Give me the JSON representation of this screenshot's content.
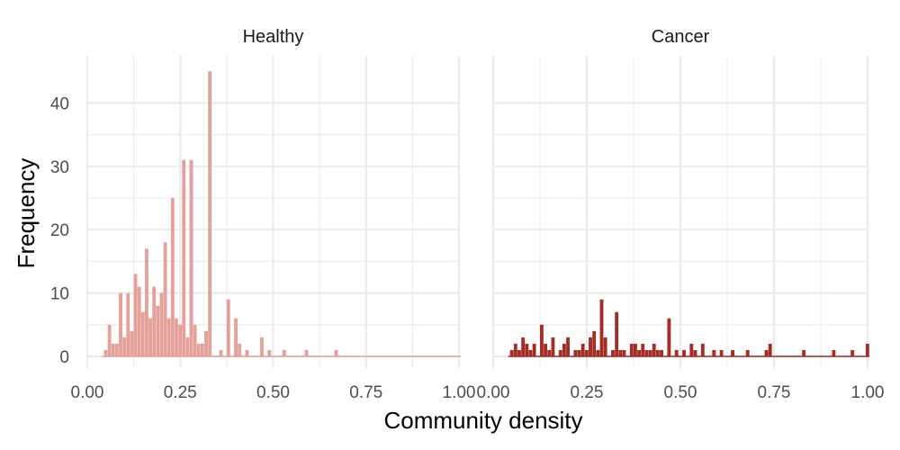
{
  "chart_data": {
    "type": "bar",
    "xlabel": "Community density",
    "ylabel": "Frequency",
    "xlim": [
      0,
      1
    ],
    "ylim": [
      0,
      45
    ],
    "x_ticks": [
      "0.00",
      "0.25",
      "0.50",
      "0.75",
      "1.00"
    ],
    "y_ticks": [
      "0",
      "10",
      "20",
      "30",
      "40"
    ],
    "grid": true,
    "bin_width": 0.01,
    "panels": [
      {
        "name": "Healthy",
        "color": "#e3a19a",
        "bins": [
          [
            0.05,
            1
          ],
          [
            0.06,
            5
          ],
          [
            0.07,
            2
          ],
          [
            0.08,
            2
          ],
          [
            0.09,
            10
          ],
          [
            0.1,
            3
          ],
          [
            0.11,
            10
          ],
          [
            0.12,
            4
          ],
          [
            0.13,
            13
          ],
          [
            0.14,
            11
          ],
          [
            0.15,
            7
          ],
          [
            0.16,
            17
          ],
          [
            0.17,
            6
          ],
          [
            0.18,
            11
          ],
          [
            0.19,
            8
          ],
          [
            0.2,
            10
          ],
          [
            0.21,
            18
          ],
          [
            0.22,
            6
          ],
          [
            0.23,
            25
          ],
          [
            0.24,
            6
          ],
          [
            0.25,
            5
          ],
          [
            0.26,
            31
          ],
          [
            0.27,
            3
          ],
          [
            0.28,
            31
          ],
          [
            0.29,
            5
          ],
          [
            0.3,
            2
          ],
          [
            0.31,
            2
          ],
          [
            0.32,
            4
          ],
          [
            0.33,
            45
          ],
          [
            0.36,
            1
          ],
          [
            0.38,
            9
          ],
          [
            0.4,
            6
          ],
          [
            0.41,
            2
          ],
          [
            0.43,
            1
          ],
          [
            0.47,
            3
          ],
          [
            0.49,
            1
          ],
          [
            0.53,
            1
          ],
          [
            0.59,
            1
          ],
          [
            0.67,
            1
          ]
        ]
      },
      {
        "name": "Cancer",
        "color": "#a32d24",
        "bins": [
          [
            0.05,
            1
          ],
          [
            0.06,
            2
          ],
          [
            0.07,
            1
          ],
          [
            0.08,
            3
          ],
          [
            0.09,
            2
          ],
          [
            0.1,
            1
          ],
          [
            0.11,
            2
          ],
          [
            0.13,
            5
          ],
          [
            0.14,
            2
          ],
          [
            0.15,
            1
          ],
          [
            0.16,
            3
          ],
          [
            0.18,
            1
          ],
          [
            0.19,
            2
          ],
          [
            0.2,
            3
          ],
          [
            0.22,
            1
          ],
          [
            0.23,
            1
          ],
          [
            0.24,
            2
          ],
          [
            0.25,
            1
          ],
          [
            0.26,
            3
          ],
          [
            0.27,
            4
          ],
          [
            0.28,
            1
          ],
          [
            0.29,
            9
          ],
          [
            0.3,
            3
          ],
          [
            0.32,
            1
          ],
          [
            0.33,
            7
          ],
          [
            0.34,
            1
          ],
          [
            0.35,
            1
          ],
          [
            0.37,
            2
          ],
          [
            0.38,
            2
          ],
          [
            0.39,
            1
          ],
          [
            0.4,
            2
          ],
          [
            0.41,
            1
          ],
          [
            0.42,
            1
          ],
          [
            0.43,
            2
          ],
          [
            0.44,
            1
          ],
          [
            0.45,
            1
          ],
          [
            0.47,
            6
          ],
          [
            0.49,
            1
          ],
          [
            0.51,
            1
          ],
          [
            0.53,
            2
          ],
          [
            0.54,
            1
          ],
          [
            0.56,
            2
          ],
          [
            0.59,
            1
          ],
          [
            0.61,
            1
          ],
          [
            0.64,
            1
          ],
          [
            0.68,
            1
          ],
          [
            0.73,
            1
          ],
          [
            0.74,
            2
          ],
          [
            0.83,
            1
          ],
          [
            0.91,
            1
          ],
          [
            0.96,
            1
          ],
          [
            1.0,
            2
          ]
        ]
      }
    ]
  }
}
